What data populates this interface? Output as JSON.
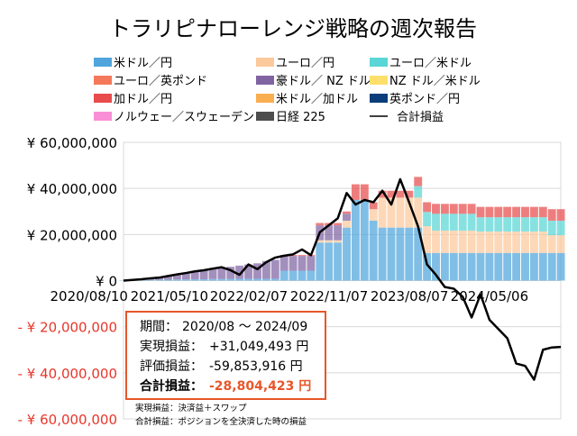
{
  "chart_data": {
    "type": "bar+line",
    "title": "トラリピナローレンジ戦略の週次報告",
    "ylim": [
      -60000000,
      60000000
    ],
    "yticks": [
      {
        "value": 60000000,
        "label": "¥ 60,000,000"
      },
      {
        "value": 40000000,
        "label": "¥ 40,000,000"
      },
      {
        "value": 20000000,
        "label": "¥ 20,000,000"
      },
      {
        "value": 0,
        "label": "¥ 0"
      },
      {
        "value": -20000000,
        "label": "- ¥ 20,000,000"
      },
      {
        "value": -40000000,
        "label": "- ¥ 40,000,000"
      },
      {
        "value": -60000000,
        "label": "- ¥ 60,000,000"
      }
    ],
    "xticks": [
      "2020/08/10",
      "2021/05/10",
      "2022/02/07",
      "2022/11/07",
      "2023/08/07",
      "2024/05/06"
    ],
    "grid": true,
    "legend_position": "top",
    "legend": [
      {
        "key": "usdjpy",
        "label": "米ドル／円",
        "color": "#4FA5DC"
      },
      {
        "key": "eurjpy",
        "label": "ユーロ／円",
        "color": "#FBC99C"
      },
      {
        "key": "eurusd",
        "label": "ユーロ／米ドル",
        "color": "#5AD6D6"
      },
      {
        "key": "eurgbp",
        "label": "ユーロ／英ポンド",
        "color": "#F4795A"
      },
      {
        "key": "audnzd",
        "label": "豪ドル／ NZ ドル",
        "color": "#8064A2"
      },
      {
        "key": "nzdusd",
        "label": "NZ ドル／米ドル",
        "color": "#FFDF6B"
      },
      {
        "key": "cadjpy",
        "label": "加ドル／円",
        "color": "#E84C4C"
      },
      {
        "key": "usdcad",
        "label": "米ドル／加ドル",
        "color": "#F9AE4F"
      },
      {
        "key": "gbpjpy",
        "label": "英ポンド／円",
        "color": "#0A3D7A"
      },
      {
        "key": "noksek",
        "label": "ノルウェー／スウェーデン",
        "color": "#F98FD6"
      },
      {
        "key": "nikkei",
        "label": "日経 225",
        "color": "#4D4D4D"
      },
      {
        "key": "total",
        "label": "合計損益",
        "color": "#000000",
        "line": true
      }
    ],
    "x": [
      "2020/08",
      "2020/09",
      "2020/10",
      "2020/11",
      "2020/12",
      "2021/01",
      "2021/02",
      "2021/03",
      "2021/04",
      "2021/05",
      "2021/06",
      "2021/07",
      "2021/08",
      "2021/09",
      "2021/10",
      "2021/11",
      "2021/12",
      "2022/01",
      "2022/02",
      "2022/03",
      "2022/04",
      "2022/05",
      "2022/06",
      "2022/07",
      "2022/08",
      "2022/09",
      "2022/10",
      "2022/11",
      "2022/12",
      "2023/01",
      "2023/02",
      "2023/03",
      "2023/04",
      "2023/05",
      "2023/06",
      "2023/07",
      "2023/08",
      "2023/09",
      "2023/10",
      "2023/11",
      "2023/12",
      "2024/01",
      "2024/02",
      "2024/03",
      "2024/04",
      "2024/05",
      "2024/06",
      "2024/07",
      "2024/08",
      "2024/09"
    ],
    "series": {
      "usdjpy": [
        0.2,
        0.2,
        0.3,
        0.3,
        0.4,
        0.4,
        0.5,
        0.5,
        0.6,
        0.6,
        0.7,
        0.7,
        0.8,
        0.8,
        0.8,
        0.8,
        0.8,
        0.8,
        4.3,
        4.3,
        4.3,
        4.3,
        16.5,
        16.5,
        16.5,
        23,
        35,
        35,
        26,
        23,
        23,
        23,
        23,
        23,
        12,
        12,
        12,
        12,
        12,
        12,
        12,
        12,
        12,
        12,
        12,
        12,
        12,
        12,
        12,
        12
      ],
      "eurjpy": [
        0,
        0,
        0,
        0,
        0,
        0,
        0,
        0,
        0,
        0,
        0,
        0,
        0,
        0,
        0,
        0,
        0,
        0,
        0,
        0,
        0,
        0,
        1,
        1,
        1,
        3,
        0,
        0,
        5,
        13,
        13,
        13,
        13,
        13,
        11.6,
        9.7,
        9.7,
        9.7,
        9.7,
        9.7,
        9.3,
        9.3,
        9.3,
        9.3,
        9.3,
        9.3,
        9.3,
        9.3,
        7.7,
        7.7
      ],
      "eurusd": [
        0,
        0,
        0,
        0,
        0,
        0,
        0,
        0,
        0,
        0,
        0,
        0,
        0,
        0,
        0,
        0,
        0,
        0,
        0,
        0,
        0,
        0,
        0,
        0,
        0,
        0,
        0,
        0,
        0,
        0,
        0,
        0,
        0,
        5,
        6.2,
        7.3,
        7.3,
        7.3,
        7.3,
        7.3,
        6.2,
        6.2,
        6.2,
        6.2,
        6.2,
        6.2,
        6.2,
        6.2,
        6.3,
        6.3
      ],
      "audnzd": [
        0,
        0.3,
        0.5,
        0.9,
        1.1,
        1.8,
        2.3,
        2.8,
        3.2,
        3.7,
        4.3,
        4.8,
        5.2,
        5.7,
        6.2,
        6.7,
        7.7,
        8.2,
        6.4,
        6.4,
        6.4,
        6.4,
        6.5,
        6.5,
        6.5,
        3,
        0,
        0,
        0,
        0,
        0,
        0,
        0,
        0,
        0,
        0,
        0,
        0,
        0,
        0,
        0,
        0,
        0,
        0,
        0,
        0,
        0,
        0,
        0,
        0
      ],
      "cadjpy": [
        0,
        0,
        0,
        0,
        0,
        0,
        0,
        0,
        0,
        0,
        0,
        0,
        0,
        0,
        0,
        0,
        0,
        0,
        0.4,
        0.4,
        0.4,
        0.4,
        1,
        1,
        1,
        1,
        6.8,
        6.8,
        3,
        3,
        3,
        3,
        3,
        4,
        4.2,
        4.3,
        4.3,
        4.3,
        4.3,
        4.3,
        4.5,
        4.5,
        4.5,
        4.5,
        4.5,
        4.5,
        4.5,
        4.5,
        5,
        5
      ],
      "total": [
        0,
        0.3,
        0.6,
        1.0,
        1.3,
        2.0,
        2.7,
        3.3,
        4.0,
        4.5,
        5.2,
        5.8,
        4.5,
        2.5,
        7.0,
        5.0,
        8.0,
        10.0,
        10.8,
        11.4,
        13.5,
        11.0,
        21.0,
        24.0,
        27.0,
        38.0,
        33.0,
        35.0,
        34.0,
        39.0,
        33.0,
        44.0,
        34.0,
        23.5,
        7.0,
        2.5,
        -2.8,
        -3.5,
        -7.0,
        -16.0,
        -6.0,
        -17.0,
        -21.0,
        -25.0,
        -36.0,
        -37.0,
        -43.0,
        -30.0,
        -29.0,
        -28.8
      ]
    },
    "series_unit": "百万円"
  },
  "summary": {
    "period_label": "期間：",
    "period_value": "2020/08 ～ 2024/09",
    "realized_label": "実現損益：",
    "realized_value": "+31,049,493 円",
    "unrealized_label": "評価損益：",
    "unrealized_value": "-59,853,916 円",
    "total_label": "合計損益：",
    "total_value": "-28,804,423 円",
    "accent_color": "#E8562A"
  },
  "notes": [
    "実現損益：決済益＋スワップ",
    "合計損益：ポジションを全決済した時の損益"
  ]
}
